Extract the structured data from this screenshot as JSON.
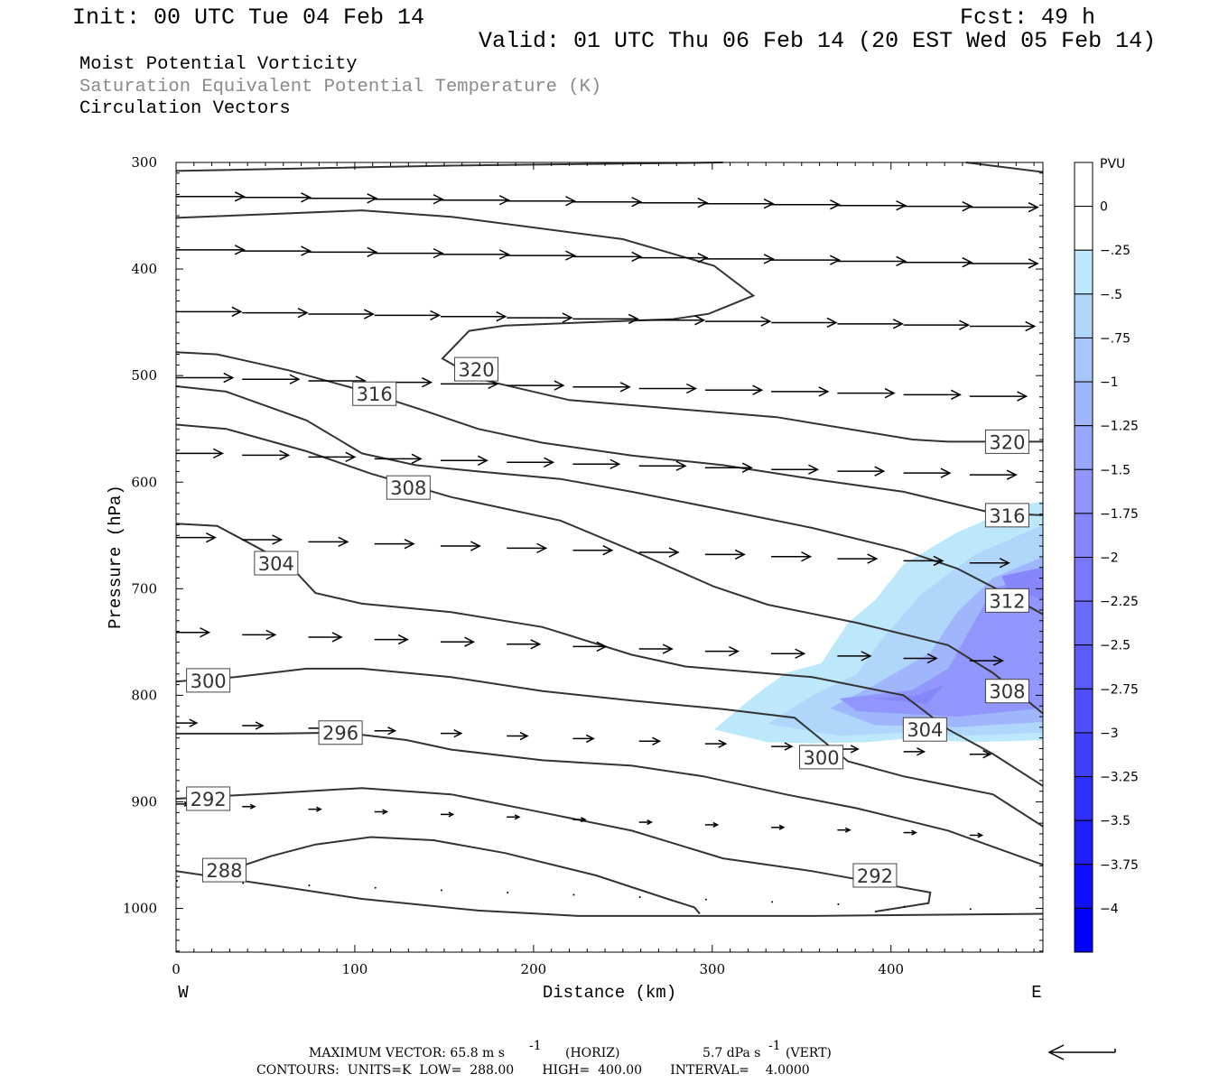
{
  "header": {
    "init": "Init: 00 UTC Tue 04 Feb 14",
    "fcst": "Fcst:   49 h",
    "valid": "Valid: 01 UTC Thu 06 Feb 14 (20 EST Wed 05 Feb 14)",
    "line1": "Moist Potential Vorticity",
    "line2": "Saturation Equivalent Potential Temperature (K)",
    "line3": "Circulation Vectors"
  },
  "footer": {
    "max_vector": "MAXIMUM VECTOR:  65.8 m s",
    "horiz": "(HORIZ)",
    "vert_val": "5.7 dPa s",
    "vert": "(VERT)",
    "exp": "-1",
    "contours": "CONTOURS:  UNITS=K  LOW=  288.00       HIGH=  400.00       INTERVAL=    4.0000"
  },
  "chart_data": {
    "type": "cross-section contour",
    "xlabel": "Distance (km)",
    "ylabel": "Pressure (hPa)",
    "x_left_label": "W",
    "x_right_label": "E",
    "xlim": [
      0,
      485
    ],
    "ylim": [
      300,
      1041
    ],
    "xticks": [
      "0",
      "100",
      "200",
      "300",
      "400"
    ],
    "yticks": [
      "300",
      "400",
      "500",
      "600",
      "700",
      "800",
      "900",
      "1000"
    ],
    "colorbar": {
      "title": "PVU",
      "labels": [
        "0",
        "-.25",
        "-.5",
        "-.75",
        "-1",
        "-1.25",
        "-1.5",
        "-1.75",
        "-2",
        "-2.25",
        "-2.5",
        "-2.75",
        "-3",
        "-3.25",
        "-3.5",
        "-3.75",
        "-4"
      ],
      "colors": [
        "#ffffff",
        "#ffffff",
        "#bde8fc",
        "#b0d6fc",
        "#a8c6fc",
        "#a0b6fc",
        "#98a6fc",
        "#9096fc",
        "#8686fc",
        "#7878fc",
        "#6a6afc",
        "#5c5cfc",
        "#4e4efc",
        "#4040fc",
        "#3030fc",
        "#2020fd",
        "#1010fe",
        "#0000ff"
      ]
    },
    "pv_shading": [
      {
        "level": "-0.25",
        "color": "#bde8fc",
        "points": [
          [
            301,
            832
          ],
          [
            321,
            804
          ],
          [
            341,
            779
          ],
          [
            361,
            770
          ],
          [
            376,
            732
          ],
          [
            391,
            711
          ],
          [
            407,
            677
          ],
          [
            437,
            647
          ],
          [
            472,
            622
          ],
          [
            485,
            618
          ],
          [
            485,
            842
          ],
          [
            447,
            844
          ],
          [
            407,
            841
          ],
          [
            386,
            844
          ],
          [
            356,
            845
          ],
          [
            331,
            844
          ]
        ]
      },
      {
        "level": "-0.5",
        "color": "#b0d6fc",
        "points": [
          [
            331,
            827
          ],
          [
            356,
            800
          ],
          [
            381,
            780
          ],
          [
            396,
            745
          ],
          [
            417,
            705
          ],
          [
            447,
            668
          ],
          [
            485,
            640
          ],
          [
            485,
            835
          ],
          [
            440,
            838
          ],
          [
            407,
            835
          ],
          [
            371,
            838
          ]
        ]
      },
      {
        "level": "-1",
        "color": "#a0b6fc",
        "points": [
          [
            366,
            812
          ],
          [
            391,
            790
          ],
          [
            422,
            760
          ],
          [
            437,
            722
          ],
          [
            457,
            690
          ],
          [
            485,
            670
          ],
          [
            485,
            825
          ],
          [
            437,
            830
          ],
          [
            391,
            828
          ]
        ]
      },
      {
        "level": "-1.5",
        "color": "#9096fc",
        "points": [
          [
            371,
            803
          ],
          [
            412,
            795
          ],
          [
            432,
            775
          ],
          [
            447,
            730
          ],
          [
            457,
            700
          ],
          [
            485,
            685
          ],
          [
            485,
            812
          ],
          [
            437,
            820
          ],
          [
            381,
            815
          ]
        ]
      },
      {
        "level": "-2",
        "color": "#8686fc",
        "points": [
          [
            391,
            803
          ],
          [
            415,
            800
          ],
          [
            430,
            790
          ],
          [
            420,
            808
          ]
        ]
      },
      {
        "level": "-2b",
        "color": "#8686fc",
        "points": [
          [
            462,
            688
          ],
          [
            485,
            680
          ],
          [
            485,
            710
          ],
          [
            465,
            700
          ]
        ]
      }
    ],
    "contours": [
      {
        "value": 324,
        "points": [
          [
            0,
            308
          ],
          [
            154,
            303
          ],
          [
            306,
            300
          ]
        ]
      },
      {
        "value": 324,
        "points": [
          [
            442,
            300
          ],
          [
            485,
            309
          ]
        ]
      },
      {
        "value": 320,
        "points": [
          [
            0,
            352
          ],
          [
            104,
            345
          ],
          [
            154,
            351
          ],
          [
            250,
            372
          ],
          [
            301,
            397
          ],
          [
            323,
            425
          ],
          [
            298,
            442
          ],
          [
            278,
            447
          ],
          [
            184,
            453
          ],
          [
            164,
            458
          ],
          [
            149,
            484
          ],
          [
            169,
            503
          ],
          [
            220,
            523
          ],
          [
            336,
            539
          ],
          [
            412,
            560
          ],
          [
            432,
            562
          ],
          [
            485,
            562
          ]
        ]
      },
      {
        "value": 316,
        "points": [
          [
            0,
            478
          ],
          [
            23,
            480
          ],
          [
            63,
            495
          ],
          [
            104,
            514
          ],
          [
            139,
            533
          ],
          [
            169,
            550
          ],
          [
            205,
            563
          ],
          [
            255,
            575
          ],
          [
            306,
            584
          ],
          [
            356,
            597
          ],
          [
            407,
            609
          ],
          [
            457,
            629
          ],
          [
            485,
            631
          ]
        ]
      },
      {
        "value": 312,
        "points": [
          [
            0,
            510
          ],
          [
            28,
            515
          ],
          [
            73,
            542
          ],
          [
            104,
            573
          ],
          [
            134,
            584
          ],
          [
            169,
            590
          ],
          [
            215,
            597
          ],
          [
            255,
            609
          ],
          [
            306,
            626
          ],
          [
            356,
            643
          ],
          [
            407,
            664
          ],
          [
            437,
            681
          ],
          [
            467,
            707
          ],
          [
            485,
            724
          ]
        ]
      },
      {
        "value": 308,
        "points": [
          [
            0,
            546
          ],
          [
            28,
            550
          ],
          [
            73,
            571
          ],
          [
            109,
            592
          ],
          [
            154,
            614
          ],
          [
            215,
            636
          ],
          [
            255,
            664
          ],
          [
            301,
            698
          ],
          [
            331,
            715
          ],
          [
            381,
            732
          ],
          [
            432,
            753
          ],
          [
            457,
            779
          ],
          [
            485,
            817
          ]
        ]
      },
      {
        "value": 304,
        "points": [
          [
            0,
            639
          ],
          [
            23,
            641
          ],
          [
            63,
            677
          ],
          [
            78,
            704
          ],
          [
            104,
            714
          ],
          [
            154,
            722
          ],
          [
            205,
            736
          ],
          [
            255,
            762
          ],
          [
            285,
            773
          ],
          [
            356,
            783
          ],
          [
            407,
            800
          ],
          [
            432,
            832
          ],
          [
            457,
            855
          ],
          [
            485,
            885
          ]
        ]
      },
      {
        "value": 300,
        "points": [
          [
            0,
            787
          ],
          [
            33,
            783
          ],
          [
            73,
            775
          ],
          [
            104,
            775
          ],
          [
            154,
            783
          ],
          [
            205,
            796
          ],
          [
            255,
            805
          ],
          [
            306,
            813
          ],
          [
            346,
            821
          ],
          [
            376,
            862
          ],
          [
            407,
            876
          ],
          [
            457,
            893
          ],
          [
            485,
            923
          ]
        ]
      },
      {
        "value": 296,
        "points": [
          [
            0,
            836
          ],
          [
            53,
            836
          ],
          [
            93,
            835
          ],
          [
            129,
            842
          ],
          [
            154,
            851
          ],
          [
            205,
            861
          ],
          [
            255,
            866
          ],
          [
            295,
            876
          ],
          [
            341,
            893
          ],
          [
            381,
            906
          ],
          [
            432,
            927
          ],
          [
            485,
            959
          ]
        ]
      },
      {
        "value": 292,
        "points": [
          [
            0,
            897
          ],
          [
            53,
            892
          ],
          [
            104,
            887
          ],
          [
            154,
            893
          ],
          [
            205,
            910
          ],
          [
            255,
            927
          ],
          [
            306,
            953
          ],
          [
            356,
            965
          ],
          [
            422,
            985
          ],
          [
            421,
            995
          ],
          [
            391,
            1003
          ]
        ]
      },
      {
        "value": 288,
        "points": [
          [
            0,
            965
          ],
          [
            53,
            978
          ],
          [
            104,
            991
          ],
          [
            169,
            1002
          ],
          [
            225,
            1007
          ],
          [
            356,
            1007
          ],
          [
            485,
            1005
          ]
        ]
      },
      {
        "value": 288,
        "points": [
          [
            28,
            965
          ],
          [
            53,
            951
          ],
          [
            78,
            940
          ],
          [
            109,
            933
          ],
          [
            144,
            936
          ],
          [
            184,
            948
          ],
          [
            235,
            969
          ],
          [
            275,
            991
          ],
          [
            290,
            999
          ],
          [
            293,
            1005
          ]
        ]
      }
    ],
    "contour_labels": [
      {
        "text": "320",
        "at": [
          168,
          494
        ]
      },
      {
        "text": "316",
        "at": [
          111,
          517
        ]
      },
      {
        "text": "308",
        "at": [
          130,
          605
        ]
      },
      {
        "text": "304",
        "at": [
          56,
          676
        ]
      },
      {
        "text": "300",
        "at": [
          18,
          786
        ]
      },
      {
        "text": "296",
        "at": [
          92,
          835
        ]
      },
      {
        "text": "292",
        "at": [
          18,
          897
        ]
      },
      {
        "text": "288",
        "at": [
          27,
          964
        ]
      },
      {
        "text": "320",
        "at": [
          465,
          562
        ]
      },
      {
        "text": "316",
        "at": [
          465,
          631
        ]
      },
      {
        "text": "312",
        "at": [
          465,
          711
        ]
      },
      {
        "text": "308",
        "at": [
          465,
          796
        ]
      },
      {
        "text": "304",
        "at": [
          419,
          832
        ]
      },
      {
        "text": "300",
        "at": [
          361,
          858
        ]
      },
      {
        "text": "292",
        "at": [
          391,
          969
        ]
      }
    ],
    "vectors": {
      "max_horiz_ms": 65.8,
      "columns_km": [
        0,
        37,
        74,
        111,
        148,
        185,
        222,
        259,
        296,
        333,
        370,
        407,
        444
      ],
      "rows": [
        {
          "p_west": 332,
          "p_east": 343,
          "u": 66
        },
        {
          "p_west": 382,
          "p_east": 396,
          "u": 66
        },
        {
          "p_west": 440,
          "p_east": 455,
          "u": 63
        },
        {
          "p_west": 502,
          "p_east": 521,
          "u": 55
        },
        {
          "p_west": 573,
          "p_east": 595,
          "u": 45
        },
        {
          "p_west": 652,
          "p_east": 678,
          "u": 38
        },
        {
          "p_west": 741,
          "p_east": 770,
          "u": 32
        },
        {
          "p_west": 826,
          "p_east": 858,
          "u": 20
        },
        {
          "p_west": 902,
          "p_east": 934,
          "u": 12
        },
        {
          "p_west": 974,
          "p_east": 1003,
          "u": 2
        }
      ]
    }
  }
}
